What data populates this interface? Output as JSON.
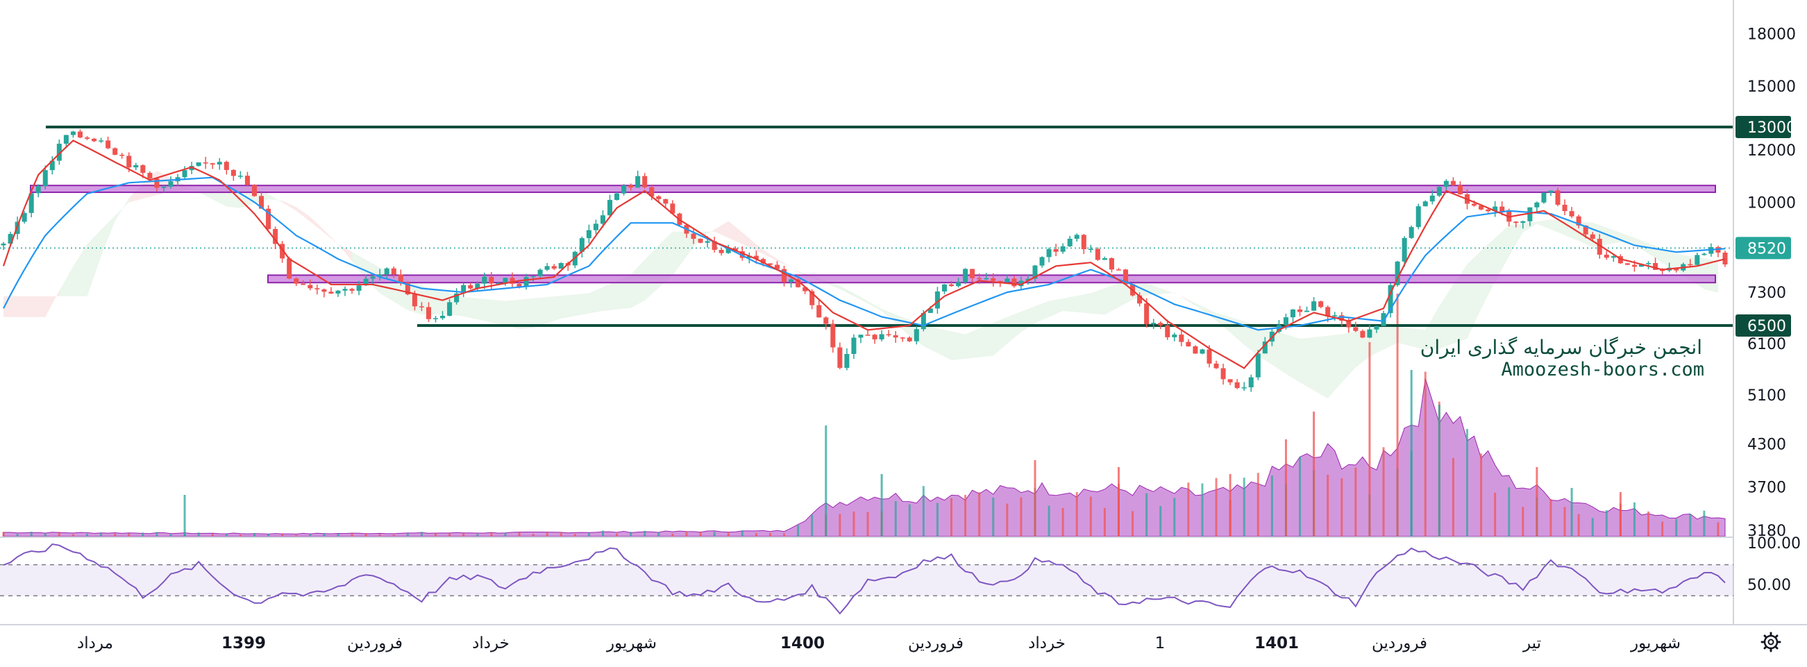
{
  "chart_data": [
    {
      "type": "candlestick",
      "title": "",
      "xlabel": "",
      "ylabel": "",
      "y_scale": "log",
      "ylim": [
        3100,
        20000
      ],
      "y_ticks": [
        18000,
        15000,
        12000,
        10000,
        7300,
        6100,
        5100,
        4300,
        3700,
        3180
      ],
      "x_ticks": [
        "مرداد",
        "1399",
        "فروردین",
        "خرداد",
        "شهریور",
        "1400",
        "فروردین",
        "خرداد",
        "1",
        "1401",
        "فروردین",
        "تیر",
        "شهریور"
      ],
      "x_ticks_bold": [
        "1399",
        "1400",
        "1401"
      ],
      "grid": false,
      "price_path": [
        [
          0,
          8600
        ],
        [
          4,
          10200
        ],
        [
          9,
          12600
        ],
        [
          14,
          12500
        ],
        [
          19,
          11200
        ],
        [
          23,
          10500
        ],
        [
          27,
          11200
        ],
        [
          31,
          11600
        ],
        [
          35,
          10600
        ],
        [
          38,
          9200
        ],
        [
          41,
          7700
        ],
        [
          45,
          7400
        ],
        [
          49,
          7350
        ],
        [
          53,
          7650
        ],
        [
          56,
          7900
        ],
        [
          59,
          7000
        ],
        [
          62,
          6600
        ],
        [
          66,
          7400
        ],
        [
          70,
          7650
        ],
        [
          74,
          7550
        ],
        [
          77,
          7900
        ],
        [
          81,
          8100
        ],
        [
          85,
          9400
        ],
        [
          88,
          10300
        ],
        [
          91,
          10800
        ],
        [
          94,
          10100
        ],
        [
          98,
          8900
        ],
        [
          102,
          8500
        ],
        [
          106,
          8300
        ],
        [
          111,
          7800
        ],
        [
          115,
          7400
        ],
        [
          118,
          6500
        ],
        [
          120,
          5600
        ],
        [
          123,
          6400
        ],
        [
          127,
          6200
        ],
        [
          130,
          6100
        ],
        [
          134,
          7300
        ],
        [
          138,
          7800
        ],
        [
          142,
          7600
        ],
        [
          146,
          7500
        ],
        [
          150,
          8400
        ],
        [
          154,
          8800
        ],
        [
          157,
          8300
        ],
        [
          161,
          7600
        ],
        [
          164,
          6600
        ],
        [
          168,
          6200
        ],
        [
          172,
          5900
        ],
        [
          176,
          5300
        ],
        [
          178,
          5200
        ],
        [
          181,
          6100
        ],
        [
          184,
          6700
        ],
        [
          188,
          7000
        ],
        [
          191,
          6700
        ],
        [
          195,
          6200
        ],
        [
          198,
          6700
        ],
        [
          201,
          8800
        ],
        [
          204,
          10200
        ],
        [
          207,
          10800
        ],
        [
          210,
          10100
        ],
        [
          214,
          9700
        ],
        [
          218,
          9300
        ],
        [
          221,
          10500
        ],
        [
          224,
          9800
        ],
        [
          227,
          9000
        ],
        [
          230,
          8200
        ],
        [
          234,
          8000
        ],
        [
          238,
          7900
        ],
        [
          242,
          8100
        ],
        [
          245,
          8550
        ],
        [
          247,
          8150
        ]
      ],
      "sma_red": [
        [
          0,
          8000
        ],
        [
          5,
          11000
        ],
        [
          10,
          12400
        ],
        [
          16,
          11500
        ],
        [
          21,
          10800
        ],
        [
          27,
          11300
        ],
        [
          31,
          10800
        ],
        [
          36,
          9600
        ],
        [
          41,
          8200
        ],
        [
          47,
          7500
        ],
        [
          53,
          7500
        ],
        [
          58,
          7300
        ],
        [
          63,
          7100
        ],
        [
          68,
          7400
        ],
        [
          74,
          7600
        ],
        [
          79,
          7700
        ],
        [
          84,
          8600
        ],
        [
          88,
          9800
        ],
        [
          92,
          10400
        ],
        [
          97,
          9400
        ],
        [
          102,
          8700
        ],
        [
          108,
          8200
        ],
        [
          114,
          7600
        ],
        [
          119,
          6800
        ],
        [
          124,
          6400
        ],
        [
          130,
          6500
        ],
        [
          135,
          7200
        ],
        [
          140,
          7600
        ],
        [
          146,
          7500
        ],
        [
          151,
          8000
        ],
        [
          156,
          8100
        ],
        [
          161,
          7500
        ],
        [
          167,
          6600
        ],
        [
          173,
          6000
        ],
        [
          178,
          5600
        ],
        [
          183,
          6400
        ],
        [
          188,
          6800
        ],
        [
          193,
          6600
        ],
        [
          198,
          6900
        ],
        [
          203,
          8800
        ],
        [
          207,
          10400
        ],
        [
          211,
          10000
        ],
        [
          216,
          9500
        ],
        [
          221,
          9700
        ],
        [
          226,
          9000
        ],
        [
          232,
          8200
        ],
        [
          238,
          7900
        ],
        [
          243,
          8000
        ],
        [
          247,
          8200
        ]
      ],
      "sma_blue": [
        [
          0,
          6900
        ],
        [
          6,
          8900
        ],
        [
          12,
          10300
        ],
        [
          18,
          10700
        ],
        [
          24,
          10800
        ],
        [
          30,
          10900
        ],
        [
          36,
          10000
        ],
        [
          42,
          8900
        ],
        [
          48,
          8200
        ],
        [
          54,
          7700
        ],
        [
          60,
          7400
        ],
        [
          66,
          7300
        ],
        [
          72,
          7400
        ],
        [
          78,
          7500
        ],
        [
          84,
          8000
        ],
        [
          90,
          9300
        ],
        [
          96,
          9300
        ],
        [
          102,
          8700
        ],
        [
          108,
          8100
        ],
        [
          114,
          7700
        ],
        [
          120,
          7100
        ],
        [
          126,
          6700
        ],
        [
          132,
          6500
        ],
        [
          138,
          6900
        ],
        [
          144,
          7300
        ],
        [
          150,
          7500
        ],
        [
          156,
          7900
        ],
        [
          162,
          7500
        ],
        [
          168,
          7000
        ],
        [
          174,
          6700
        ],
        [
          180,
          6400
        ],
        [
          186,
          6500
        ],
        [
          192,
          6700
        ],
        [
          198,
          6600
        ],
        [
          204,
          8300
        ],
        [
          210,
          9500
        ],
        [
          216,
          9700
        ],
        [
          222,
          9600
        ],
        [
          228,
          9100
        ],
        [
          234,
          8600
        ],
        [
          240,
          8400
        ],
        [
          247,
          8500
        ]
      ],
      "resistance_lines": [
        13000,
        6500
      ],
      "zones": [
        {
          "from": 10350,
          "to": 10600
        },
        {
          "from": 7550,
          "to": 7750
        }
      ],
      "last_price": 8520,
      "price_badges": [
        {
          "value": 13000,
          "label": "13000",
          "color": "#0b4d3c"
        },
        {
          "value": 8520,
          "label": "8520",
          "color": "#26a69a"
        },
        {
          "value": 6500,
          "label": "6500",
          "color": "#0b4d3c"
        }
      ],
      "volume_profile": [
        [
          0,
          3
        ],
        [
          40,
          2
        ],
        [
          80,
          3
        ],
        [
          112,
          4
        ],
        [
          118,
          22
        ],
        [
          124,
          30
        ],
        [
          130,
          28
        ],
        [
          136,
          30
        ],
        [
          142,
          32
        ],
        [
          148,
          35
        ],
        [
          154,
          33
        ],
        [
          160,
          34
        ],
        [
          166,
          32
        ],
        [
          172,
          30
        ],
        [
          178,
          33
        ],
        [
          184,
          50
        ],
        [
          190,
          60
        ],
        [
          196,
          48
        ],
        [
          200,
          70
        ],
        [
          204,
          100
        ],
        [
          208,
          90
        ],
        [
          212,
          60
        ],
        [
          216,
          40
        ],
        [
          222,
          30
        ],
        [
          230,
          20
        ],
        [
          240,
          15
        ],
        [
          247,
          14
        ]
      ],
      "volume_spikes": [
        [
          26,
          30
        ],
        [
          118,
          80
        ],
        [
          126,
          45
        ],
        [
          148,
          55
        ],
        [
          160,
          50
        ],
        [
          176,
          45
        ],
        [
          184,
          70
        ],
        [
          188,
          90
        ],
        [
          196,
          140
        ],
        [
          200,
          175
        ],
        [
          202,
          120
        ],
        [
          206,
          95
        ],
        [
          220,
          50
        ],
        [
          225,
          35
        ],
        [
          232,
          32
        ]
      ],
      "watermark_line1": "انجمن خبرگان سرمایه گذاری ایران",
      "watermark_line2": "Amoozesh-boors.com",
      "colors": {
        "up": "#26a69a",
        "down": "#ef5350",
        "sma_red": "#e53935",
        "sma_blue": "#2196f3",
        "resistance": "#0b4d3c",
        "zone_fill": "#c678d9",
        "zone_stroke": "#8e24aa",
        "cloud_green": "#a5d6a7",
        "cloud_red": "#ef9a9a",
        "volume": "#b454c8",
        "last_price": "#26a69a"
      }
    },
    {
      "type": "line",
      "title": "",
      "ylim": [
        0,
        100
      ],
      "y_ticks": [
        "100.00",
        "50.00"
      ],
      "bands": [
        30,
        70
      ],
      "series": [
        {
          "values": [
            [
              0,
              70
            ],
            [
              4,
              85
            ],
            [
              8,
              95
            ],
            [
              12,
              80
            ],
            [
              16,
              60
            ],
            [
              20,
              30
            ],
            [
              24,
              55
            ],
            [
              28,
              70
            ],
            [
              32,
              40
            ],
            [
              36,
              20
            ],
            [
              40,
              35
            ],
            [
              44,
              30
            ],
            [
              48,
              40
            ],
            [
              52,
              60
            ],
            [
              56,
              45
            ],
            [
              60,
              25
            ],
            [
              64,
              50
            ],
            [
              68,
              55
            ],
            [
              72,
              40
            ],
            [
              76,
              60
            ],
            [
              80,
              70
            ],
            [
              84,
              80
            ],
            [
              88,
              90
            ],
            [
              92,
              60
            ],
            [
              96,
              35
            ],
            [
              100,
              30
            ],
            [
              104,
              45
            ],
            [
              108,
              20
            ],
            [
              112,
              25
            ],
            [
              116,
              40
            ],
            [
              120,
              10
            ],
            [
              124,
              50
            ],
            [
              128,
              55
            ],
            [
              132,
              75
            ],
            [
              136,
              80
            ],
            [
              140,
              50
            ],
            [
              144,
              45
            ],
            [
              148,
              75
            ],
            [
              152,
              70
            ],
            [
              156,
              40
            ],
            [
              160,
              20
            ],
            [
              164,
              25
            ],
            [
              168,
              25
            ],
            [
              172,
              20
            ],
            [
              176,
              15
            ],
            [
              179,
              50
            ],
            [
              182,
              70
            ],
            [
              186,
              60
            ],
            [
              190,
              40
            ],
            [
              194,
              20
            ],
            [
              198,
              70
            ],
            [
              202,
              90
            ],
            [
              206,
              80
            ],
            [
              210,
              70
            ],
            [
              214,
              55
            ],
            [
              218,
              40
            ],
            [
              222,
              75
            ],
            [
              226,
              60
            ],
            [
              230,
              30
            ],
            [
              234,
              40
            ],
            [
              238,
              35
            ],
            [
              242,
              50
            ],
            [
              245,
              60
            ],
            [
              247,
              50
            ]
          ],
          "color": "#7e57c2"
        }
      ]
    }
  ]
}
